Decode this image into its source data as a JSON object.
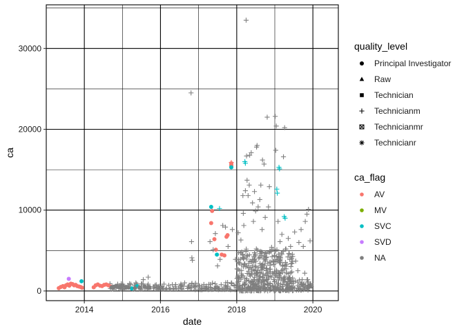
{
  "chart_data": {
    "type": "scatter",
    "title": "",
    "xlabel": "date",
    "ylabel": "ca",
    "x_type": "date",
    "xlim": [
      "2013-01-01",
      "2020-09-01"
    ],
    "ylim": [
      -1200,
      35400
    ],
    "x_ticks": [
      {
        "value": "2014-01-01",
        "label": "2014"
      },
      {
        "value": "2016-01-01",
        "label": "2016"
      },
      {
        "value": "2018-01-01",
        "label": "2018"
      },
      {
        "value": "2020-01-01",
        "label": "2020"
      }
    ],
    "y_ticks": [
      {
        "value": 0,
        "label": "0"
      },
      {
        "value": 10000,
        "label": "10000"
      },
      {
        "value": 20000,
        "label": "20000"
      },
      {
        "value": 30000,
        "label": "30000"
      }
    ],
    "grid": true,
    "legend_position": "right",
    "legends": [
      {
        "title": "quality_level",
        "aesthetic": "shape",
        "entries": [
          {
            "label": "Principal Investigator",
            "shape": "circle"
          },
          {
            "label": "Raw",
            "shape": "triangle"
          },
          {
            "label": "Technician",
            "shape": "square"
          },
          {
            "label": "Technicianm",
            "shape": "plus"
          },
          {
            "label": "Technicianmr",
            "shape": "boxed-x"
          },
          {
            "label": "Technicianr",
            "shape": "asterisk"
          }
        ]
      },
      {
        "title": "ca_flag",
        "aesthetic": "color",
        "entries": [
          {
            "label": "AV",
            "color": "#F8766D"
          },
          {
            "label": "MV",
            "color": "#7CAE00"
          },
          {
            "label": "SVC",
            "color": "#00BFC4"
          },
          {
            "label": "SVD",
            "color": "#C77CFF"
          },
          {
            "label": "NA",
            "color": "#7F7F7F"
          }
        ]
      }
    ],
    "series": [
      {
        "name": "AV",
        "shape": "circle",
        "color": "#F8766D",
        "points": [
          [
            "2013-05-01",
            350
          ],
          [
            "2013-05-20",
            500
          ],
          [
            "2013-06-10",
            600
          ],
          [
            "2013-06-25",
            450
          ],
          [
            "2013-07-10",
            700
          ],
          [
            "2013-07-25",
            800
          ],
          [
            "2013-08-10",
            650
          ],
          [
            "2013-08-25",
            900
          ],
          [
            "2013-09-10",
            850
          ],
          [
            "2013-09-25",
            700
          ],
          [
            "2013-10-10",
            750
          ],
          [
            "2013-10-25",
            600
          ],
          [
            "2013-11-10",
            550
          ],
          [
            "2013-11-25",
            500
          ],
          [
            "2013-12-10",
            400
          ],
          [
            "2014-04-01",
            450
          ],
          [
            "2014-04-20",
            700
          ],
          [
            "2014-05-10",
            800
          ],
          [
            "2014-06-01",
            650
          ],
          [
            "2014-06-20",
            600
          ],
          [
            "2014-07-10",
            750
          ],
          [
            "2014-07-30",
            800
          ],
          [
            "2014-08-20",
            700
          ],
          [
            "2014-09-10",
            550
          ],
          [
            "2017-05-01",
            8400
          ],
          [
            "2017-05-10",
            9900
          ],
          [
            "2017-06-01",
            6400
          ],
          [
            "2017-06-15",
            5100
          ],
          [
            "2017-08-10",
            4500
          ],
          [
            "2017-09-05",
            4400
          ],
          [
            "2017-09-25",
            6700
          ],
          [
            "2017-10-05",
            6900
          ],
          [
            "2017-11-10",
            15800
          ],
          [
            "2017-11-10",
            15600
          ],
          [
            "2017-11-10",
            15400
          ]
        ]
      },
      {
        "name": "SVC",
        "shape": "circle",
        "color": "#00BFC4",
        "points": [
          [
            "2013-12-05",
            1200
          ],
          [
            "2015-04-01",
            300
          ],
          [
            "2015-05-20",
            600
          ],
          [
            "2017-05-01",
            10400
          ],
          [
            "2017-06-25",
            4500
          ],
          [
            "2017-11-10",
            15300
          ]
        ]
      },
      {
        "name": "SVD",
        "shape": "circle",
        "color": "#C77CFF",
        "points": [
          [
            "2013-08-05",
            1500
          ]
        ]
      },
      {
        "name": "NA",
        "shape": "circle",
        "color": "#7F7F7F",
        "points": [
          [
            "2014-09-20",
            450
          ],
          [
            "2014-10-10",
            520
          ],
          [
            "2014-10-30",
            600
          ],
          [
            "2014-11-20",
            480
          ],
          [
            "2014-12-10",
            550
          ],
          [
            "2015-01-05",
            600
          ],
          [
            "2015-02-01",
            500
          ],
          [
            "2015-03-01",
            420
          ],
          [
            "2015-05-01",
            350
          ],
          [
            "2015-06-15",
            450
          ],
          [
            "2015-08-01",
            550
          ],
          [
            "2015-09-15",
            500
          ]
        ]
      },
      {
        "name": "AV Technicianm",
        "shape": "plus",
        "color": "#F8766D",
        "points": [
          [
            "2017-11-10",
            15900
          ]
        ]
      },
      {
        "name": "SVC Technicianm",
        "shape": "plus",
        "color": "#00BFC4",
        "points": [
          [
            "2017-07-20",
            10200
          ],
          [
            "2018-03-20",
            16000
          ],
          [
            "2018-03-25",
            15800
          ],
          [
            "2019-01-20",
            12600
          ],
          [
            "2019-01-25",
            12100
          ],
          [
            "2019-02-10",
            15300
          ],
          [
            "2019-02-15",
            15100
          ],
          [
            "2019-04-01",
            9200
          ],
          [
            "2019-04-10",
            9000
          ]
        ]
      },
      {
        "name": "NA Technicianm",
        "shape": "plus",
        "color": "#7F7F7F",
        "points": [
          [
            "2015-03-10",
            900
          ],
          [
            "2015-05-10",
            1000
          ],
          [
            "2015-07-20",
            1400
          ],
          [
            "2015-09-05",
            1700
          ],
          [
            "2015-11-10",
            700
          ],
          [
            "2016-01-15",
            600
          ],
          [
            "2016-03-20",
            700
          ],
          [
            "2016-05-25",
            800
          ],
          [
            "2016-07-10",
            500
          ],
          [
            "2016-08-20",
            1000
          ],
          [
            "2016-10-01",
            700
          ],
          [
            "2016-10-20",
            24500
          ],
          [
            "2016-10-25",
            6100
          ],
          [
            "2016-10-28",
            4100
          ],
          [
            "2016-11-02",
            3800
          ],
          [
            "2017-01-10",
            600
          ],
          [
            "2017-03-15",
            600
          ],
          [
            "2017-04-20",
            6100
          ],
          [
            "2017-05-20",
            5100
          ],
          [
            "2017-06-10",
            7100
          ],
          [
            "2017-07-01",
            3100
          ],
          [
            "2017-07-25",
            3900
          ],
          [
            "2017-08-20",
            8100
          ],
          [
            "2017-09-15",
            7900
          ],
          [
            "2017-10-10",
            5500
          ],
          [
            "2017-11-20",
            7600
          ],
          [
            "2017-12-20",
            3900
          ],
          [
            "2018-01-15",
            7200
          ],
          [
            "2018-02-10",
            6300
          ],
          [
            "2018-03-01",
            11800
          ],
          [
            "2018-03-05",
            9600
          ],
          [
            "2018-03-10",
            8100
          ],
          [
            "2018-03-25",
            12400
          ],
          [
            "2018-04-01",
            33500
          ],
          [
            "2018-04-05",
            16700
          ],
          [
            "2018-04-10",
            13700
          ],
          [
            "2018-04-20",
            11800
          ],
          [
            "2018-05-01",
            13100
          ],
          [
            "2018-05-05",
            16800
          ],
          [
            "2018-05-20",
            17100
          ],
          [
            "2018-06-01",
            10900
          ],
          [
            "2018-06-10",
            8600
          ],
          [
            "2018-06-20",
            12300
          ],
          [
            "2018-07-01",
            9900
          ],
          [
            "2018-07-10",
            17800
          ],
          [
            "2018-07-15",
            18000
          ],
          [
            "2018-07-25",
            10400
          ],
          [
            "2018-08-10",
            11300
          ],
          [
            "2018-08-20",
            13100
          ],
          [
            "2018-09-01",
            7600
          ],
          [
            "2018-09-05",
            16200
          ],
          [
            "2018-09-20",
            15700
          ],
          [
            "2018-10-01",
            9100
          ],
          [
            "2018-10-20",
            21500
          ],
          [
            "2018-11-01",
            10400
          ],
          [
            "2018-11-10",
            12900
          ],
          [
            "2018-12-01",
            5400
          ],
          [
            "2019-01-05",
            21600
          ],
          [
            "2019-01-10",
            17400
          ],
          [
            "2019-01-15",
            20400
          ],
          [
            "2019-02-01",
            8600
          ],
          [
            "2019-02-20",
            6100
          ],
          [
            "2019-03-10",
            7000
          ],
          [
            "2019-03-25",
            16600
          ],
          [
            "2019-04-05",
            20200
          ],
          [
            "2019-05-10",
            6500
          ],
          [
            "2019-06-01",
            5500
          ],
          [
            "2019-07-10",
            7300
          ],
          [
            "2019-08-20",
            6000
          ],
          [
            "2019-09-10",
            7600
          ],
          [
            "2019-10-01",
            5500
          ],
          [
            "2019-10-20",
            8600
          ],
          [
            "2019-11-05",
            9500
          ],
          [
            "2019-11-20",
            10100
          ],
          [
            "2019-12-05",
            6200
          ],
          [
            "2018-01-20",
            1200
          ],
          [
            "2018-02-15",
            2100
          ],
          [
            "2018-03-15",
            3300
          ],
          [
            "2018-04-15",
            4400
          ],
          [
            "2018-05-15",
            2900
          ],
          [
            "2018-06-15",
            3900
          ],
          [
            "2018-07-20",
            2500
          ],
          [
            "2018-08-15",
            4900
          ],
          [
            "2018-09-10",
            3300
          ],
          [
            "2018-10-10",
            1900
          ],
          [
            "2018-11-20",
            2700
          ],
          [
            "2018-12-15",
            3600
          ],
          [
            "2019-01-20",
            2400
          ],
          [
            "2019-02-25",
            4100
          ],
          [
            "2019-03-20",
            3200
          ],
          [
            "2019-04-25",
            2200
          ],
          [
            "2019-05-20",
            4600
          ],
          [
            "2019-06-20",
            1600
          ],
          [
            "2019-07-20",
            3700
          ],
          [
            "2019-08-10",
            2500
          ],
          [
            "2019-09-20",
            1400
          ],
          [
            "2019-10-15",
            2200
          ],
          [
            "2019-11-10",
            1100
          ],
          [
            "2019-12-10",
            900
          ]
        ]
      },
      {
        "name": "NA Raw",
        "shape": "triangle",
        "color": "#7F7F7F",
        "points": [
          [
            "2019-12-05",
            800
          ],
          [
            "2019-12-08",
            550
          ]
        ]
      }
    ],
    "dense_bands": [
      {
        "series": "NA",
        "color": "#7F7F7F",
        "shape": "plus",
        "segments": [
          {
            "from": "2014-09-01",
            "to": "2016-10-01",
            "y_min": 200,
            "y_max": 900
          },
          {
            "from": "2016-10-01",
            "to": "2017-12-31",
            "y_min": 150,
            "y_max": 1100
          },
          {
            "from": "2018-01-01",
            "to": "2019-06-30",
            "y_min": 0,
            "y_max": 5200
          },
          {
            "from": "2019-07-01",
            "to": "2019-12-31",
            "y_min": 100,
            "y_max": 1500
          }
        ]
      }
    ]
  }
}
